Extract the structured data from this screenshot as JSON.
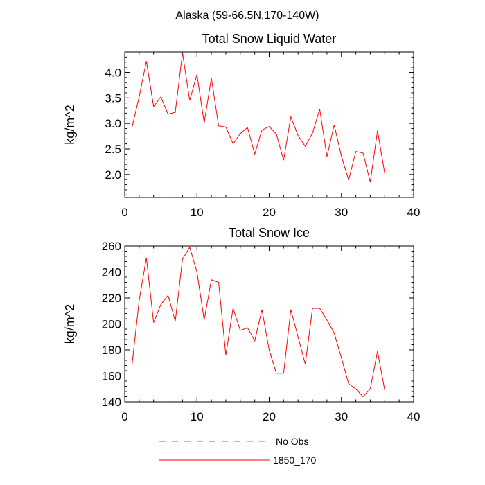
{
  "title": "Alaska (59-66.5N,170-140W)",
  "colors": {
    "series": "#ff0000",
    "no_obs": "#6b6bd6",
    "axis": "#000000"
  },
  "legend": [
    {
      "label": "No Obs",
      "color": "#6b6bd6",
      "style": "dashed"
    },
    {
      "label": "1850_170",
      "color": "#ff0000",
      "style": "solid"
    }
  ],
  "chart_data": [
    {
      "type": "line",
      "title": "Total Snow Liquid Water",
      "xlabel": "",
      "ylabel": "kg/m^2",
      "xlim": [
        0,
        40
      ],
      "ylim": [
        1.55,
        4.4
      ],
      "xticks": [
        0,
        10,
        20,
        30,
        40
      ],
      "yticks": [
        2.0,
        2.5,
        3.0,
        3.5,
        4.0
      ],
      "ytick_labels": [
        "2.0",
        "2.5",
        "3.0",
        "3.5",
        "4.0"
      ],
      "series": [
        {
          "name": "1850_170",
          "x": [
            1,
            2,
            3,
            4,
            5,
            6,
            7,
            8,
            9,
            10,
            11,
            12,
            13,
            14,
            15,
            16,
            17,
            18,
            19,
            20,
            21,
            22,
            23,
            24,
            25,
            26,
            27,
            28,
            29,
            30,
            31,
            32,
            33,
            34,
            35,
            36
          ],
          "values": [
            2.92,
            3.52,
            4.22,
            3.33,
            3.52,
            3.18,
            3.22,
            4.38,
            3.45,
            3.96,
            3.01,
            3.89,
            2.95,
            2.93,
            2.6,
            2.8,
            2.92,
            2.4,
            2.87,
            2.94,
            2.79,
            2.28,
            3.13,
            2.76,
            2.55,
            2.81,
            3.28,
            2.35,
            2.97,
            2.36,
            1.89,
            2.45,
            2.42,
            1.85,
            2.86,
            2.02
          ]
        }
      ]
    },
    {
      "type": "line",
      "title": "Total Snow Ice",
      "xlabel": "",
      "ylabel": "kg/m^2",
      "xlim": [
        0,
        40
      ],
      "ylim": [
        140,
        260
      ],
      "xticks": [
        0,
        10,
        20,
        30,
        40
      ],
      "yticks": [
        140,
        160,
        180,
        200,
        220,
        240,
        260
      ],
      "ytick_labels": [
        "140",
        "160",
        "180",
        "200",
        "220",
        "240",
        "260"
      ],
      "series": [
        {
          "name": "1850_170",
          "x": [
            1,
            2,
            3,
            4,
            5,
            6,
            7,
            8,
            9,
            10,
            11,
            12,
            13,
            14,
            15,
            16,
            17,
            18,
            19,
            20,
            21,
            22,
            23,
            24,
            25,
            26,
            27,
            28,
            29,
            30,
            31,
            32,
            33,
            34,
            35,
            36
          ],
          "values": [
            168,
            218,
            251,
            201,
            215,
            222,
            202,
            250,
            259,
            240,
            203,
            234,
            232,
            176,
            212,
            195,
            197,
            187,
            211,
            180,
            162,
            162,
            211,
            190,
            169,
            212,
            212,
            203,
            193,
            174,
            154,
            150,
            144,
            150,
            179,
            149
          ]
        }
      ]
    }
  ]
}
